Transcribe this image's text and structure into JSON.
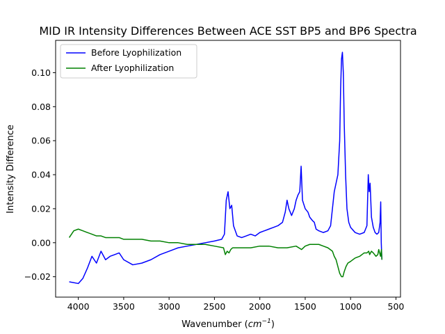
{
  "chart_data": {
    "type": "line",
    "title": "MID IR Intensity Differences Between ACE SST BP5 and BP6 Spectra",
    "xlabel_main": "Wavenumber (",
    "xlabel_unit": "cm",
    "xlabel_sup": "−1",
    "xlabel_close": ")",
    "ylabel": "Intensity Difference",
    "xlim": [
      4250,
      450
    ],
    "ylim": [
      -0.032,
      0.119
    ],
    "x_inverted": true,
    "xticks": [
      4000,
      3500,
      3000,
      2500,
      2000,
      1500,
      1000,
      500
    ],
    "xtick_labels": [
      "4000",
      "3500",
      "3000",
      "2500",
      "2000",
      "1500",
      "1000",
      "500"
    ],
    "yticks": [
      -0.02,
      0.0,
      0.02,
      0.04,
      0.06,
      0.08,
      0.1
    ],
    "ytick_labels": [
      "−0.02",
      "0.00",
      "0.02",
      "0.04",
      "0.06",
      "0.08",
      "0.10"
    ],
    "grid": false,
    "legend_position": "top-left",
    "series": [
      {
        "name": "Before Lyophilization",
        "color": "#0000ff",
        "points": [
          [
            4100,
            -0.023
          ],
          [
            4000,
            -0.024
          ],
          [
            3950,
            -0.021
          ],
          [
            3900,
            -0.015
          ],
          [
            3850,
            -0.008
          ],
          [
            3800,
            -0.012
          ],
          [
            3750,
            -0.005
          ],
          [
            3700,
            -0.01
          ],
          [
            3650,
            -0.008
          ],
          [
            3600,
            -0.007
          ],
          [
            3550,
            -0.006
          ],
          [
            3500,
            -0.01
          ],
          [
            3400,
            -0.013
          ],
          [
            3300,
            -0.012
          ],
          [
            3200,
            -0.01
          ],
          [
            3100,
            -0.007
          ],
          [
            3000,
            -0.005
          ],
          [
            2900,
            -0.003
          ],
          [
            2800,
            -0.002
          ],
          [
            2700,
            -0.001
          ],
          [
            2600,
            0.0
          ],
          [
            2500,
            0.001
          ],
          [
            2420,
            0.002
          ],
          [
            2390,
            0.005
          ],
          [
            2370,
            0.025
          ],
          [
            2350,
            0.03
          ],
          [
            2330,
            0.02
          ],
          [
            2310,
            0.022
          ],
          [
            2290,
            0.01
          ],
          [
            2250,
            0.004
          ],
          [
            2200,
            0.003
          ],
          [
            2150,
            0.004
          ],
          [
            2100,
            0.005
          ],
          [
            2050,
            0.004
          ],
          [
            2000,
            0.006
          ],
          [
            1950,
            0.007
          ],
          [
            1900,
            0.008
          ],
          [
            1850,
            0.009
          ],
          [
            1800,
            0.01
          ],
          [
            1750,
            0.012
          ],
          [
            1720,
            0.018
          ],
          [
            1700,
            0.025
          ],
          [
            1680,
            0.02
          ],
          [
            1650,
            0.016
          ],
          [
            1620,
            0.02
          ],
          [
            1600,
            0.025
          ],
          [
            1580,
            0.028
          ],
          [
            1560,
            0.03
          ],
          [
            1545,
            0.045
          ],
          [
            1530,
            0.025
          ],
          [
            1500,
            0.02
          ],
          [
            1470,
            0.018
          ],
          [
            1450,
            0.015
          ],
          [
            1420,
            0.013
          ],
          [
            1400,
            0.012
          ],
          [
            1380,
            0.008
          ],
          [
            1350,
            0.007
          ],
          [
            1300,
            0.006
          ],
          [
            1250,
            0.007
          ],
          [
            1220,
            0.01
          ],
          [
            1200,
            0.02
          ],
          [
            1180,
            0.03
          ],
          [
            1160,
            0.035
          ],
          [
            1140,
            0.04
          ],
          [
            1120,
            0.06
          ],
          [
            1110,
            0.09
          ],
          [
            1100,
            0.108
          ],
          [
            1090,
            0.112
          ],
          [
            1080,
            0.1
          ],
          [
            1070,
            0.07
          ],
          [
            1055,
            0.04
          ],
          [
            1040,
            0.02
          ],
          [
            1020,
            0.012
          ],
          [
            1000,
            0.009
          ],
          [
            950,
            0.006
          ],
          [
            900,
            0.005
          ],
          [
            850,
            0.006
          ],
          [
            820,
            0.01
          ],
          [
            805,
            0.04
          ],
          [
            795,
            0.03
          ],
          [
            785,
            0.035
          ],
          [
            770,
            0.015
          ],
          [
            750,
            0.009
          ],
          [
            730,
            0.006
          ],
          [
            710,
            0.005
          ],
          [
            690,
            0.006
          ],
          [
            675,
            0.012
          ],
          [
            668,
            0.024
          ],
          [
            662,
            0.0
          ],
          [
            655,
            -0.01
          ]
        ]
      },
      {
        "name": "After Lyophilization",
        "color": "#008000",
        "points": [
          [
            4100,
            0.003
          ],
          [
            4050,
            0.007
          ],
          [
            4000,
            0.008
          ],
          [
            3950,
            0.007
          ],
          [
            3900,
            0.006
          ],
          [
            3850,
            0.005
          ],
          [
            3800,
            0.004
          ],
          [
            3750,
            0.004
          ],
          [
            3700,
            0.003
          ],
          [
            3650,
            0.003
          ],
          [
            3600,
            0.003
          ],
          [
            3550,
            0.003
          ],
          [
            3500,
            0.002
          ],
          [
            3400,
            0.002
          ],
          [
            3300,
            0.002
          ],
          [
            3200,
            0.001
          ],
          [
            3100,
            0.001
          ],
          [
            3000,
            0.0
          ],
          [
            2900,
            0.0
          ],
          [
            2800,
            -0.001
          ],
          [
            2700,
            -0.001
          ],
          [
            2600,
            -0.001
          ],
          [
            2500,
            -0.002
          ],
          [
            2400,
            -0.003
          ],
          [
            2380,
            -0.007
          ],
          [
            2360,
            -0.005
          ],
          [
            2340,
            -0.006
          ],
          [
            2320,
            -0.004
          ],
          [
            2300,
            -0.003
          ],
          [
            2200,
            -0.003
          ],
          [
            2100,
            -0.003
          ],
          [
            2000,
            -0.002
          ],
          [
            1900,
            -0.002
          ],
          [
            1800,
            -0.003
          ],
          [
            1700,
            -0.003
          ],
          [
            1600,
            -0.002
          ],
          [
            1540,
            -0.004
          ],
          [
            1500,
            -0.002
          ],
          [
            1450,
            -0.001
          ],
          [
            1400,
            -0.001
          ],
          [
            1350,
            -0.001
          ],
          [
            1300,
            -0.002
          ],
          [
            1250,
            -0.003
          ],
          [
            1200,
            -0.005
          ],
          [
            1180,
            -0.008
          ],
          [
            1160,
            -0.01
          ],
          [
            1140,
            -0.014
          ],
          [
            1120,
            -0.018
          ],
          [
            1100,
            -0.02
          ],
          [
            1085,
            -0.02
          ],
          [
            1070,
            -0.017
          ],
          [
            1050,
            -0.014
          ],
          [
            1030,
            -0.012
          ],
          [
            1000,
            -0.011
          ],
          [
            950,
            -0.009
          ],
          [
            900,
            -0.008
          ],
          [
            850,
            -0.006
          ],
          [
            820,
            -0.006
          ],
          [
            800,
            -0.005
          ],
          [
            790,
            -0.007
          ],
          [
            770,
            -0.005
          ],
          [
            750,
            -0.006
          ],
          [
            720,
            -0.008
          ],
          [
            700,
            -0.007
          ],
          [
            690,
            -0.004
          ],
          [
            680,
            -0.006
          ],
          [
            670,
            -0.008
          ],
          [
            660,
            -0.004
          ],
          [
            655,
            -0.01
          ]
        ]
      }
    ]
  }
}
